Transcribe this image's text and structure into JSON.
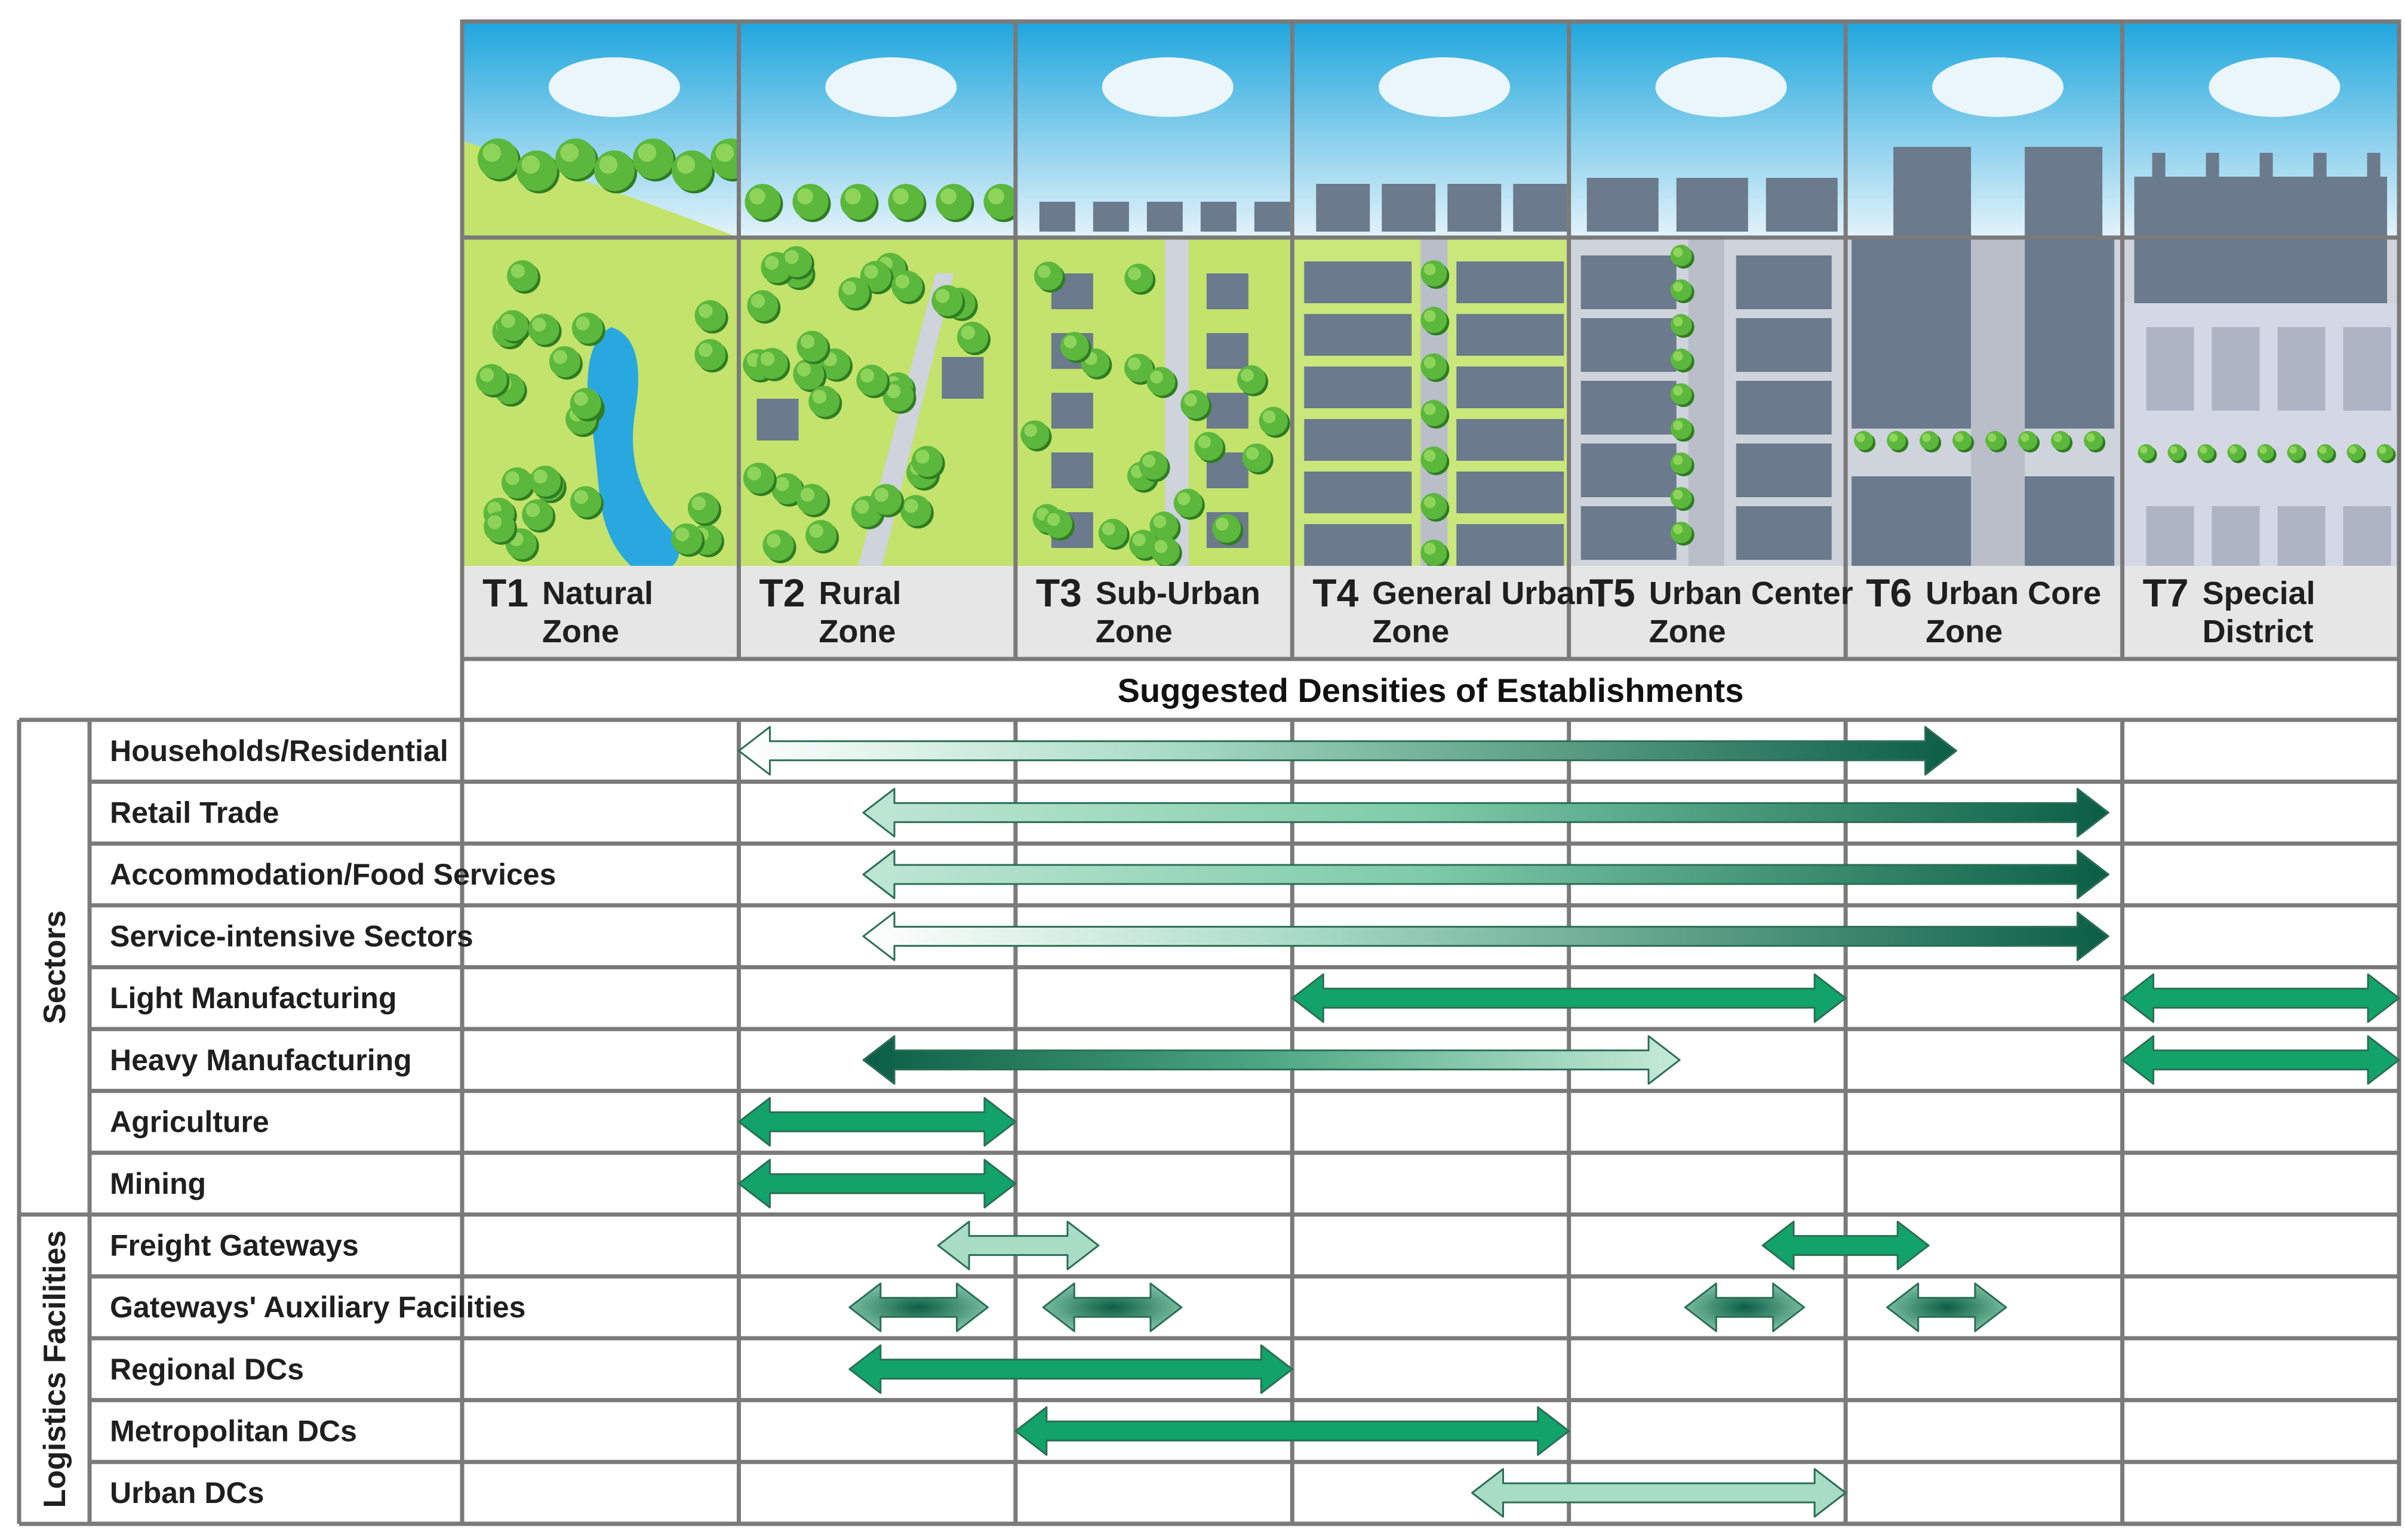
{
  "header": {
    "title": "Suggested Densities of Establishments"
  },
  "zones": [
    {
      "code": "T1",
      "name_line1": "Natural",
      "name_line2": "Zone",
      "scene": "natural"
    },
    {
      "code": "T2",
      "name_line1": "Rural",
      "name_line2": "Zone",
      "scene": "rural"
    },
    {
      "code": "T3",
      "name_line1": "Sub-Urban",
      "name_line2": "Zone",
      "scene": "suburban"
    },
    {
      "code": "T4",
      "name_line1": "General Urban",
      "name_line2": "Zone",
      "scene": "general-urban"
    },
    {
      "code": "T5",
      "name_line1": "Urban Center",
      "name_line2": "Zone",
      "scene": "urban-center"
    },
    {
      "code": "T6",
      "name_line1": "Urban Core",
      "name_line2": "Zone",
      "scene": "urban-core"
    },
    {
      "code": "T7",
      "name_line1": "Special",
      "name_line2": "District",
      "scene": "special-district"
    }
  ],
  "groups": [
    {
      "label": "Sectors",
      "rows": 8
    },
    {
      "label": "Logistics Facilities",
      "rows": 5
    }
  ],
  "rows": [
    {
      "label": "Households/Residential",
      "arrows": [
        {
          "from": 1.0,
          "to": 5.4,
          "style": "gradient-light-to-dark"
        }
      ]
    },
    {
      "label": "Retail Trade",
      "arrows": [
        {
          "from": 1.45,
          "to": 5.95,
          "style": "gradient-mid-to-dark"
        }
      ]
    },
    {
      "label": "Accommodation/Food Services",
      "arrows": [
        {
          "from": 1.45,
          "to": 5.95,
          "style": "gradient-mid-to-dark"
        }
      ]
    },
    {
      "label": "Service-intensive Sectors",
      "arrows": [
        {
          "from": 1.45,
          "to": 5.95,
          "style": "gradient-light-to-dark"
        }
      ]
    },
    {
      "label": "Light Manufacturing",
      "arrows": [
        {
          "from": 3.0,
          "to": 5.0,
          "style": "solid-green"
        },
        {
          "from": 6.0,
          "to": 7.0,
          "style": "solid-green"
        }
      ]
    },
    {
      "label": "Heavy Manufacturing",
      "arrows": [
        {
          "from": 1.45,
          "to": 4.4,
          "style": "gradient-dark-to-light"
        },
        {
          "from": 6.0,
          "to": 7.0,
          "style": "solid-green"
        }
      ]
    },
    {
      "label": "Agriculture",
      "arrows": [
        {
          "from": 1.0,
          "to": 2.0,
          "style": "solid-green"
        }
      ]
    },
    {
      "label": "Mining",
      "arrows": [
        {
          "from": 1.0,
          "to": 2.0,
          "style": "solid-green"
        }
      ]
    },
    {
      "label": "Freight Gateways",
      "arrows": [
        {
          "from": 1.72,
          "to": 2.3,
          "style": "solid-light"
        },
        {
          "from": 4.7,
          "to": 5.3,
          "style": "solid-green"
        }
      ]
    },
    {
      "label": "Gateways' Auxiliary Facilities",
      "arrows": [
        {
          "from": 1.4,
          "to": 1.9,
          "style": "radial-dark"
        },
        {
          "from": 2.1,
          "to": 2.6,
          "style": "radial-dark"
        },
        {
          "from": 4.42,
          "to": 4.85,
          "style": "radial-dark"
        },
        {
          "from": 5.15,
          "to": 5.58,
          "style": "radial-dark"
        }
      ]
    },
    {
      "label": "Regional DCs",
      "arrows": [
        {
          "from": 1.4,
          "to": 3.0,
          "style": "solid-green"
        }
      ]
    },
    {
      "label": "Metropolitan DCs",
      "arrows": [
        {
          "from": 2.0,
          "to": 4.0,
          "style": "solid-green"
        }
      ]
    },
    {
      "label": "Urban DCs",
      "arrows": [
        {
          "from": 3.65,
          "to": 5.0,
          "style": "solid-light"
        }
      ]
    }
  ],
  "colors": {
    "grid": "#7a7a7a",
    "arrow_dark": "#0b5e45",
    "arrow_green": "#12a36a",
    "arrow_light": "#a8dcc4",
    "sky_top": "#1fa6dd",
    "sky_bottom": "#e3f3fa",
    "grass": "#c3e36c",
    "tree": "#5cb83c",
    "building": "#6b7a8c",
    "road": "#ced3dc",
    "water": "#29a8e0",
    "label_band": "#e6e6e6"
  }
}
